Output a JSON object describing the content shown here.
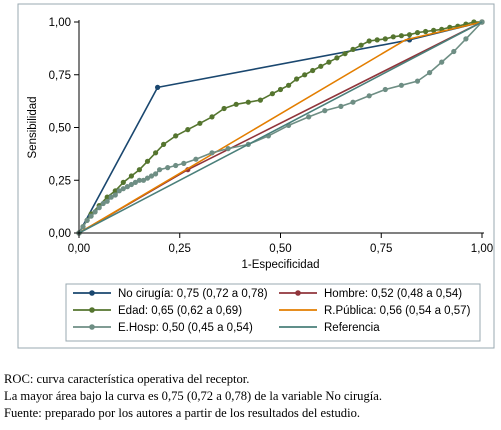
{
  "chart_data": {
    "type": "line",
    "xlabel": "1-Especificidad",
    "ylabel": "Sensibilidad",
    "xlim": [
      0,
      1
    ],
    "ylim": [
      0,
      1
    ],
    "x_ticks": [
      "0,00",
      "0,25",
      "0,50",
      "0,75",
      "1,00"
    ],
    "y_ticks": [
      "0,00",
      "0,25",
      "0,50",
      "0,75",
      "1,00"
    ],
    "grid": false,
    "legend_position": "bottom",
    "series": [
      {
        "name": "No cirugía: 0,75 (0,72 a 0,78)",
        "color": "#1a476f",
        "marker": "circle",
        "x": [
          0,
          0.195,
          0.82,
          1
        ],
        "y": [
          0,
          0.69,
          0.915,
          1
        ]
      },
      {
        "name": "Hombre: 0,52 (0,48 a 0,54)",
        "color": "#90353b",
        "marker": "circle",
        "x": [
          0,
          0.27,
          1
        ],
        "y": [
          0,
          0.3,
          1
        ]
      },
      {
        "name": "Edad: 0,65 (0,62 a 0,69)",
        "color": "#55752f",
        "marker": "circle",
        "x": [
          0,
          0.01,
          0.02,
          0.03,
          0.05,
          0.07,
          0.09,
          0.11,
          0.13,
          0.15,
          0.17,
          0.19,
          0.21,
          0.24,
          0.27,
          0.3,
          0.33,
          0.36,
          0.39,
          0.42,
          0.45,
          0.48,
          0.5,
          0.52,
          0.54,
          0.56,
          0.58,
          0.6,
          0.62,
          0.64,
          0.66,
          0.68,
          0.7,
          0.72,
          0.74,
          0.76,
          0.78,
          0.8,
          0.82,
          0.84,
          0.86,
          0.88,
          0.9,
          0.92,
          0.94,
          0.96,
          0.98,
          1.0
        ],
        "y": [
          0,
          0.03,
          0.06,
          0.09,
          0.13,
          0.17,
          0.2,
          0.24,
          0.27,
          0.3,
          0.34,
          0.38,
          0.42,
          0.46,
          0.49,
          0.52,
          0.55,
          0.59,
          0.61,
          0.62,
          0.63,
          0.66,
          0.68,
          0.7,
          0.73,
          0.75,
          0.77,
          0.79,
          0.81,
          0.83,
          0.85,
          0.87,
          0.89,
          0.91,
          0.915,
          0.92,
          0.93,
          0.935,
          0.94,
          0.95,
          0.955,
          0.96,
          0.965,
          0.975,
          0.98,
          0.99,
          1.0,
          1.0
        ]
      },
      {
        "name": "R.Pública: 0,56 (0,54 a 0,57)",
        "color": "#e37e00",
        "marker": "none",
        "x": [
          0,
          0.81,
          1
        ],
        "y": [
          0,
          0.915,
          1
        ]
      },
      {
        "name": "E.Hosp: 0,50  (0,45 a 0,54)",
        "color": "#6e8e84",
        "marker": "circle",
        "x": [
          0,
          0.01,
          0.02,
          0.03,
          0.04,
          0.05,
          0.06,
          0.07,
          0.08,
          0.09,
          0.1,
          0.11,
          0.12,
          0.13,
          0.14,
          0.15,
          0.16,
          0.17,
          0.18,
          0.19,
          0.2,
          0.22,
          0.24,
          0.26,
          0.29,
          0.33,
          0.37,
          0.42,
          0.47,
          0.52,
          0.57,
          0.61,
          0.65,
          0.68,
          0.72,
          0.76,
          0.8,
          0.84,
          0.87,
          0.9,
          0.93,
          0.96,
          1.0
        ],
        "y": [
          0,
          0.03,
          0.06,
          0.08,
          0.1,
          0.12,
          0.14,
          0.15,
          0.17,
          0.18,
          0.2,
          0.21,
          0.22,
          0.23,
          0.24,
          0.25,
          0.25,
          0.26,
          0.27,
          0.28,
          0.3,
          0.31,
          0.32,
          0.33,
          0.35,
          0.38,
          0.4,
          0.42,
          0.46,
          0.51,
          0.55,
          0.58,
          0.6,
          0.62,
          0.65,
          0.68,
          0.7,
          0.72,
          0.76,
          0.81,
          0.86,
          0.92,
          1.0
        ]
      },
      {
        "name": "Referencia",
        "color": "#4a7f7a",
        "marker": "none",
        "x": [
          0,
          1
        ],
        "y": [
          0,
          1
        ]
      }
    ]
  },
  "caption": {
    "line1": "ROC: curva característica operativa del receptor.",
    "line2": "La mayor área bajo la curva es 0,75 (0,72 a 0,78) de la variable No cirugía.",
    "line3": "Fuente: preparado por los autores a partir de los resultados del estudio."
  }
}
